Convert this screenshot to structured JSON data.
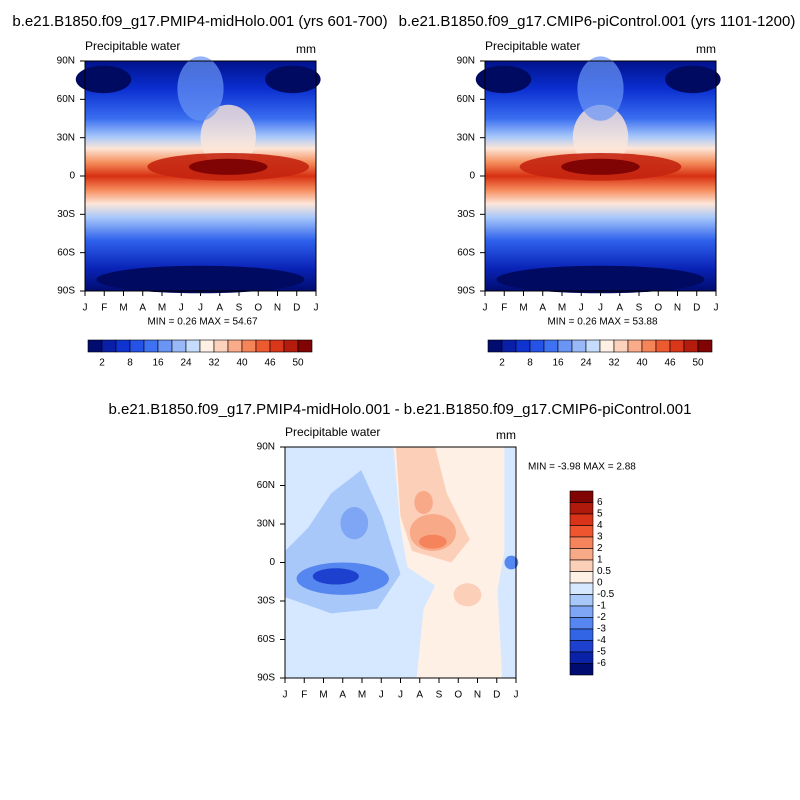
{
  "panels": [
    {
      "title": "b.e21.B1850.f09_g17.PMIP4-midHolo.001 (yrs 601-700)",
      "label": "Precipitable water",
      "units": "mm",
      "yticks": [
        "90N",
        "60N",
        "30N",
        "0",
        "30S",
        "60S",
        "90S"
      ],
      "xticks": [
        "J",
        "F",
        "M",
        "A",
        "M",
        "J",
        "J",
        "A",
        "S",
        "O",
        "N",
        "D",
        "J"
      ],
      "stats": "MIN =   0.26 MAX =  54.67",
      "colorbar": [
        "2",
        "8",
        "16",
        "24",
        "32",
        "40",
        "46",
        "50"
      ]
    },
    {
      "title": "b.e21.B1850.f09_g17.CMIP6-piControl.001 (yrs 1101-1200)",
      "label": "Precipitable water",
      "units": "mm",
      "yticks": [
        "90N",
        "60N",
        "30N",
        "0",
        "30S",
        "60S",
        "90S"
      ],
      "xticks": [
        "J",
        "F",
        "M",
        "A",
        "M",
        "J",
        "J",
        "A",
        "S",
        "O",
        "N",
        "D",
        "J"
      ],
      "stats": "MIN =   0.26 MAX =  53.88",
      "colorbar": [
        "2",
        "8",
        "16",
        "24",
        "32",
        "40",
        "46",
        "50"
      ]
    },
    {
      "title": "b.e21.B1850.f09_g17.PMIP4-midHolo.001 - b.e21.B1850.f09_g17.CMIP6-piControl.001",
      "label": "Precipitable water",
      "units": "mm",
      "yticks": [
        "90N",
        "60N",
        "30N",
        "0",
        "30S",
        "60S",
        "90S"
      ],
      "xticks": [
        "J",
        "F",
        "M",
        "A",
        "M",
        "J",
        "J",
        "A",
        "S",
        "O",
        "N",
        "D",
        "J"
      ],
      "stats": "MIN =  -3.98 MAX =   2.88",
      "colorbar": [
        "6",
        "5",
        "4",
        "3",
        "2",
        "1",
        "0.5",
        "0",
        "-0.5",
        "-1",
        "-2",
        "-3",
        "-4",
        "-5",
        "-6"
      ]
    }
  ]
}
